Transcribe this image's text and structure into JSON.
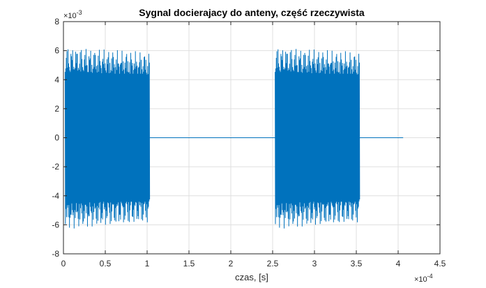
{
  "chart_data": {
    "type": "line",
    "title": "Sygnal docierajacy do anteny, część rzeczywista",
    "xlabel": "czas, [s]",
    "ylabel": "",
    "x_exponent": {
      "base": "×10",
      "power": "-4"
    },
    "y_exponent": {
      "base": "×10",
      "power": "-3"
    },
    "xlim": [
      0,
      4.5
    ],
    "ylim": [
      -8,
      8
    ],
    "x_ticks": [
      0,
      0.5,
      1,
      1.5,
      2,
      2.5,
      3,
      3.5,
      4,
      4.5
    ],
    "x_tick_labels": [
      "0",
      "0.5",
      "1",
      "1.5",
      "2",
      "2.5",
      "3",
      "3.5",
      "4",
      "4.5"
    ],
    "y_ticks": [
      -8,
      -6,
      -4,
      -2,
      0,
      2,
      4,
      6,
      8
    ],
    "y_tick_labels": [
      "-8",
      "-6",
      "-4",
      "-2",
      "0",
      "2",
      "4",
      "6",
      "8"
    ],
    "grid": true,
    "series_color": "#0072BD",
    "series": [
      {
        "segments": [
          {
            "kind": "line",
            "x": [
              0.0,
              0.02
            ],
            "y": [
              0.0,
              0.0
            ]
          },
          {
            "kind": "burst",
            "x_start": 0.02,
            "x_end": 1.03,
            "amp_start": 6.3,
            "amp_end": 5.9
          },
          {
            "kind": "line",
            "x": [
              1.03,
              2.53
            ],
            "y": [
              0.0,
              0.0
            ]
          },
          {
            "kind": "burst",
            "x_start": 2.53,
            "x_end": 3.54,
            "amp_start": 6.3,
            "amp_end": 5.9
          },
          {
            "kind": "line",
            "x": [
              3.54,
              4.06
            ],
            "y": [
              0.0,
              0.0
            ]
          }
        ]
      }
    ]
  }
}
